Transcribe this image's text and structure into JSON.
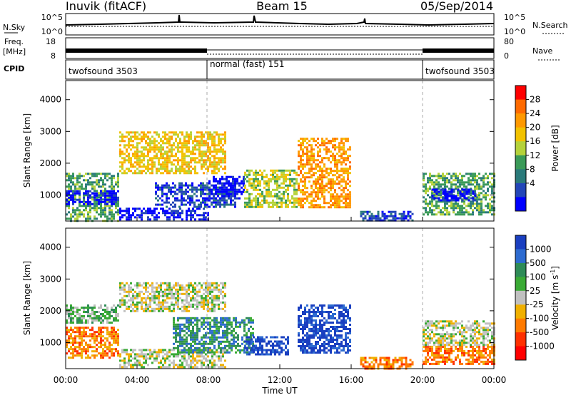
{
  "header": {
    "station": "Inuvik (fitACF)",
    "beam": "Beam 15",
    "date": "05/Sep/2014"
  },
  "nsky_panel": {
    "left_label": "N.Sky",
    "left_ticks": [
      "10^5",
      "10^0"
    ],
    "right_label": "N.Search",
    "right_ticks": [
      "10^5",
      "10^0"
    ]
  },
  "freq_panel": {
    "left_label_line1": "Freq.",
    "left_label_line2": "[MHz]",
    "left_ticks": [
      "18",
      "8"
    ],
    "right_label": "Nave",
    "right_ticks": [
      "80",
      "0"
    ]
  },
  "cpid_panel": {
    "label": "CPID",
    "segments": [
      {
        "text": "twofsound 3503",
        "start_hour": 0
      },
      {
        "text": "normal (fast) 151",
        "start_hour": 8
      },
      {
        "text": "twofsound 3503",
        "start_hour": 20
      }
    ]
  },
  "time_axis": {
    "label": "Time UT",
    "ticks": [
      "00:00",
      "04:00",
      "08:00",
      "12:00",
      "16:00",
      "20:00",
      "00:00"
    ]
  },
  "chart_data": [
    {
      "type": "heatmap",
      "name": "power-panel",
      "ylabel": "Slant Range [km]",
      "xlim_hours": [
        0,
        24
      ],
      "ylim_km": [
        180,
        4600
      ],
      "yticks": [
        1000,
        2000,
        3000,
        4000
      ],
      "colorbar": {
        "label": "Power [dB]",
        "ticks": [
          "28",
          "24",
          "20",
          "16",
          "12",
          "8",
          "4"
        ],
        "colors": [
          "#ff0000",
          "#ff6a00",
          "#ff9900",
          "#f2c200",
          "#b5d23a",
          "#3a9a58",
          "#2a7a7a",
          "#2346b8",
          "#0000ff"
        ]
      },
      "regions": [
        {
          "t0": 0.0,
          "t1": 3.0,
          "r0": 200,
          "r1": 1700,
          "level": 5
        },
        {
          "t0": 0.0,
          "t1": 3.0,
          "r0": 700,
          "r1": 1150,
          "level": 8
        },
        {
          "t0": 3.0,
          "t1": 8.0,
          "r0": 200,
          "r1": 600,
          "level": 8
        },
        {
          "t0": 5.0,
          "t1": 9.5,
          "r0": 600,
          "r1": 1400,
          "level": 7
        },
        {
          "t0": 8.0,
          "t1": 10.0,
          "r0": 900,
          "r1": 1600,
          "level": 8
        },
        {
          "t0": 10.0,
          "t1": 13.0,
          "r0": 600,
          "r1": 1800,
          "level": 4
        },
        {
          "t0": 3.0,
          "t1": 9.0,
          "r0": 1700,
          "r1": 3000,
          "level": 3
        },
        {
          "t0": 13.0,
          "t1": 16.0,
          "r0": 600,
          "r1": 2800,
          "level": 2
        },
        {
          "t0": 16.5,
          "t1": 19.5,
          "r0": 200,
          "r1": 500,
          "level": 7
        },
        {
          "t0": 20.0,
          "t1": 24.0,
          "r0": 400,
          "r1": 1700,
          "level": 5
        },
        {
          "t0": 20.5,
          "t1": 23.0,
          "r0": 800,
          "r1": 1200,
          "level": 8
        }
      ]
    },
    {
      "type": "heatmap",
      "name": "velocity-panel",
      "ylabel": "Slant Range [km]",
      "xlim_hours": [
        0,
        24
      ],
      "ylim_km": [
        180,
        4600
      ],
      "yticks": [
        1000,
        2000,
        3000,
        4000
      ],
      "colorbar": {
        "label": "Velocity [m s^-1]",
        "ticks": [
          "1000",
          "500",
          "100",
          "25",
          "-25",
          "-100",
          "-500",
          "-1000"
        ],
        "colors": [
          "#1a3fc0",
          "#2d6bd0",
          "#2e8b57",
          "#3aaa35",
          "#c0c0c0",
          "#f0b000",
          "#ff7a00",
          "#ff3000",
          "#ff0000"
        ]
      },
      "regions": [
        {
          "t0": 0.0,
          "t1": 3.0,
          "r0": 500,
          "r1": 1500,
          "level": 6
        },
        {
          "t0": 0.0,
          "t1": 3.0,
          "r0": 1600,
          "r1": 2200,
          "level": 3
        },
        {
          "t0": 3.0,
          "t1": 9.0,
          "r0": 250,
          "r1": 800,
          "level": 4
        },
        {
          "t0": 3.0,
          "t1": 9.0,
          "r0": 2000,
          "r1": 2900,
          "level": 4
        },
        {
          "t0": 6.0,
          "t1": 10.5,
          "r0": 700,
          "r1": 1800,
          "level": 2
        },
        {
          "t0": 10.0,
          "t1": 12.5,
          "r0": 600,
          "r1": 1200,
          "level": 0
        },
        {
          "t0": 13.0,
          "t1": 16.0,
          "r0": 700,
          "r1": 2200,
          "level": 0
        },
        {
          "t0": 16.5,
          "t1": 19.5,
          "r0": 200,
          "r1": 550,
          "level": 6
        },
        {
          "t0": 20.0,
          "t1": 24.0,
          "r0": 300,
          "r1": 900,
          "level": 6
        },
        {
          "t0": 20.0,
          "t1": 24.0,
          "r0": 900,
          "r1": 1700,
          "level": 4
        }
      ]
    }
  ]
}
